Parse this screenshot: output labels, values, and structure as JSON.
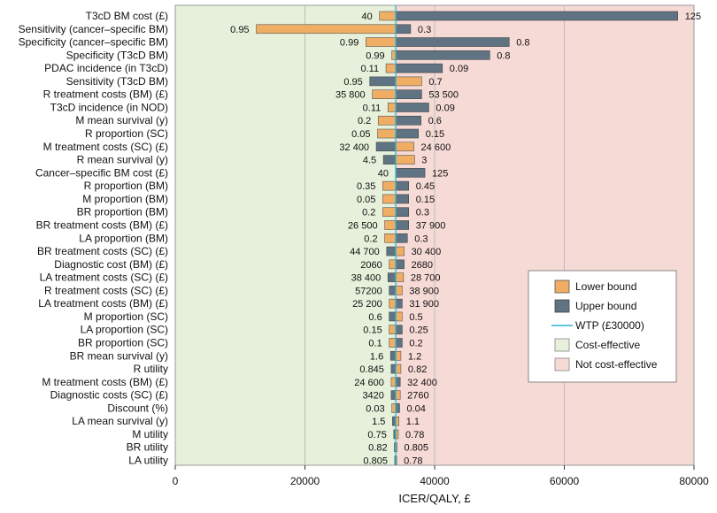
{
  "chart_data": {
    "type": "bar",
    "subtype": "tornado",
    "xlabel": "ICER/QALY, £",
    "xlim": [
      0,
      80000
    ],
    "xticks": [
      0,
      20000,
      40000,
      60000,
      80000
    ],
    "xtick_labels": [
      "0",
      "20000",
      "40000",
      "60000",
      "80000"
    ],
    "baseline": 34000,
    "grid": true,
    "legend_position": "bottom-right",
    "legend": {
      "lower": "Lower bound",
      "upper": "Upper bound",
      "wtp": "WTP (£30000)",
      "ce": "Cost-effective",
      "nce": "Not cost-effective"
    },
    "colors": {
      "lower": "#F0AD64",
      "upper": "#5F7382",
      "wtp": "#2BB3D1",
      "ce": "#E6F0DA",
      "nce": "#F6DAD6",
      "grid": "#BDBDBD"
    },
    "rows": [
      {
        "label": "T3cD BM cost (£)",
        "lower_label": "40",
        "upper_label": "125",
        "lower_icer": 31500,
        "upper_icer": 77500
      },
      {
        "label": "Sensitivity (cancer–specific BM)",
        "lower_label": "0.95",
        "upper_label": "0.3",
        "lower_icer": 12500,
        "upper_icer": 36300
      },
      {
        "label": "Specificity (cancer–specific BM)",
        "lower_label": "0.99",
        "upper_label": "0.8",
        "lower_icer": 29400,
        "upper_icer": 51500
      },
      {
        "label": "Specificity (T3cD BM)",
        "lower_label": "0.99",
        "upper_label": "0.8",
        "lower_icer": 33400,
        "upper_icer": 48500
      },
      {
        "label": "PDAC incidence (in T3cD)",
        "lower_label": "0.11",
        "upper_label": "0.09",
        "lower_icer": 32500,
        "upper_icer": 41200
      },
      {
        "label": "Sensitivity (T3cD BM)",
        "lower_label": "0.95",
        "upper_label": "0.7",
        "lower_icer": 38000,
        "upper_icer": 30000
      },
      {
        "label": "R treatment costs (BM) (£)",
        "lower_label": "35 800",
        "upper_label": "53 500",
        "lower_icer": 30400,
        "upper_icer": 38000
      },
      {
        "label": "T3cD incidence (in NOD)",
        "lower_label": "0.11",
        "upper_label": "0.09",
        "lower_icer": 32800,
        "upper_icer": 39100
      },
      {
        "label": "M mean survival (y)",
        "lower_label": "0.2",
        "upper_label": "0.6",
        "lower_icer": 31300,
        "upper_icer": 37900
      },
      {
        "label": "R proportion (SC)",
        "lower_label": "0.05",
        "upper_label": "0.15",
        "lower_icer": 31200,
        "upper_icer": 37500
      },
      {
        "label": "M treatment costs (SC) (£)",
        "lower_label": "32 400",
        "upper_label": "24 600",
        "lower_icer": 36800,
        "upper_icer": 31000
      },
      {
        "label": "R mean survival (y)",
        "lower_label": "4.5",
        "upper_label": "3",
        "lower_icer": 36900,
        "upper_icer": 32100
      },
      {
        "label": "Cancer–specific BM cost (£)",
        "lower_label": "40",
        "upper_label": "125",
        "lower_icer": 34000,
        "upper_icer": 38500
      },
      {
        "label": "R proportion (BM)",
        "lower_label": "0.35",
        "upper_label": "0.45",
        "lower_icer": 32000,
        "upper_icer": 36000
      },
      {
        "label": "M proportion (BM)",
        "lower_label": "0.05",
        "upper_label": "0.15",
        "lower_icer": 32000,
        "upper_icer": 36000
      },
      {
        "label": "BR proportion (BM)",
        "lower_label": "0.2",
        "upper_label": "0.3",
        "lower_icer": 32000,
        "upper_icer": 36000
      },
      {
        "label": "BR treatment costs (BM) (£)",
        "lower_label": "26 500",
        "upper_label": "37 900",
        "lower_icer": 32300,
        "upper_icer": 36000
      },
      {
        "label": "LA proportion (BM)",
        "lower_label": "0.2",
        "upper_label": "0.3",
        "lower_icer": 32300,
        "upper_icer": 35800
      },
      {
        "label": "BR treatment costs (SC) (£)",
        "lower_label": "44 700",
        "upper_label": "30 400",
        "lower_icer": 35300,
        "upper_icer": 32600
      },
      {
        "label": "Diagnostic cost (BM) (£)",
        "lower_label": "2060",
        "upper_label": "2680",
        "lower_icer": 33000,
        "upper_icer": 35300
      },
      {
        "label": "LA treatment costs (SC) (£)",
        "lower_label": "38 400",
        "upper_label": "28 700",
        "lower_icer": 35200,
        "upper_icer": 32800
      },
      {
        "label": "R treatment costs (SC) (£)",
        "lower_label": "57200",
        "upper_label": "38 900",
        "lower_icer": 35000,
        "upper_icer": 33000
      },
      {
        "label": "LA treatment costs (BM) (£)",
        "lower_label": "25 200",
        "upper_label": "31 900",
        "lower_icer": 33000,
        "upper_icer": 35000
      },
      {
        "label": "M proportion (SC)",
        "lower_label": "0.6",
        "upper_label": "0.5",
        "lower_icer": 35000,
        "upper_icer": 33000
      },
      {
        "label": "LA proportion (SC)",
        "lower_label": "0.15",
        "upper_label": "0.25",
        "lower_icer": 33000,
        "upper_icer": 35000
      },
      {
        "label": "BR proportion (SC)",
        "lower_label": "0.1",
        "upper_label": "0.2",
        "lower_icer": 33000,
        "upper_icer": 35000
      },
      {
        "label": "BR mean survival (y)",
        "lower_label": "1.6",
        "upper_label": "1.2",
        "lower_icer": 34800,
        "upper_icer": 33200
      },
      {
        "label": "R utility",
        "lower_label": "0.845",
        "upper_label": "0.82",
        "lower_icer": 34800,
        "upper_icer": 33300
      },
      {
        "label": "M treatment costs (BM) (£)",
        "lower_label": "24 600",
        "upper_label": "32 400",
        "lower_icer": 33300,
        "upper_icer": 34700
      },
      {
        "label": "Diagnostic costs (SC) (£)",
        "lower_label": "3420",
        "upper_label": "2760",
        "lower_icer": 34700,
        "upper_icer": 33300
      },
      {
        "label": "Discount (%)",
        "lower_label": "0.03",
        "upper_label": "0.04",
        "lower_icer": 33400,
        "upper_icer": 34600
      },
      {
        "label": "LA mean survival (y)",
        "lower_label": "1.5",
        "upper_label": "1.1",
        "lower_icer": 34500,
        "upper_icer": 33500
      },
      {
        "label": "M utility",
        "lower_label": "0.75",
        "upper_label": "0.78",
        "lower_icer": 34400,
        "upper_icer": 33700
      },
      {
        "label": "BR utility",
        "lower_label": "0.82",
        "upper_label": "0.805",
        "lower_icer": 34200,
        "upper_icer": 33800
      },
      {
        "label": "LA utility",
        "lower_label": "0.805",
        "upper_label": "0.78",
        "lower_icer": 34150,
        "upper_icer": 33850
      }
    ]
  }
}
